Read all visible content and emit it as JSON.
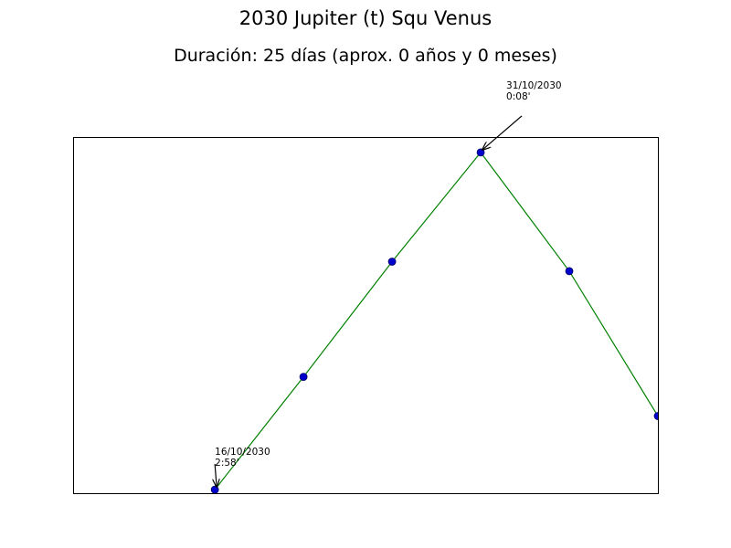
{
  "chart_data": {
    "type": "line",
    "title": "2030 Jupiter (t) Squ Venus",
    "subtitle": "Duración: 25 días (aprox. 0 años y 0 meses)",
    "xlabel": "",
    "ylabel": "",
    "grid": false,
    "x": [
      "16/10/2030",
      "21/10/2030",
      "26/10/2030",
      "31/10/2030",
      "05/11/2030",
      "10/11/2030"
    ],
    "xlim": [
      "08/10/2030",
      "10/11/2030"
    ],
    "series": [
      {
        "values": [
          -2.97,
          -2.02,
          -1.05,
          -0.13,
          -1.13,
          -2.35
        ]
      }
    ],
    "ylim": [
      -3.0,
      0.0
    ],
    "colors": {
      "line": "#008000",
      "marker_fill": "#0000cc",
      "marker_edge": "#000066"
    },
    "annotations": [
      {
        "point_index": 0,
        "lines": [
          "16/10/2030",
          "2:58'"
        ]
      },
      {
        "point_index": 3,
        "lines": [
          "31/10/2030",
          "0:08'"
        ]
      }
    ]
  }
}
